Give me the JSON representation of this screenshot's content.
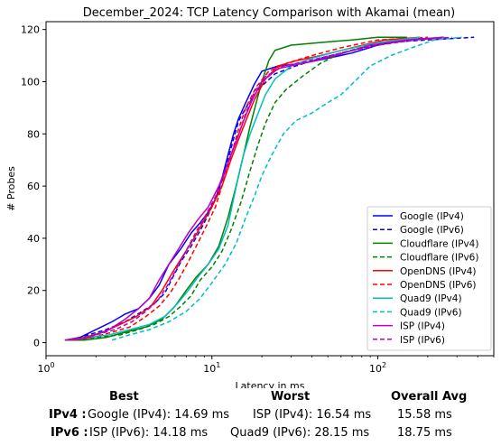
{
  "chart_data": {
    "type": "line",
    "title": "December_2024: TCP Latency Comparison with Akamai (mean)",
    "xlabel": "Latency in ms",
    "ylabel": "# Probes",
    "xscale": "log",
    "xlim": [
      1,
      500
    ],
    "ylim": [
      -5,
      123
    ],
    "x_ticks": [
      "10^0",
      "10^1",
      "10^2"
    ],
    "y_ticks": [
      0,
      20,
      40,
      60,
      80,
      100,
      120
    ],
    "grid": false,
    "legend_position": "lower right",
    "series": [
      {
        "name": "Google (IPv4)",
        "color": "#0000ff",
        "dash": "solid",
        "points": [
          [
            1.3,
            1
          ],
          [
            1.6,
            2
          ],
          [
            2.0,
            5
          ],
          [
            2.5,
            8
          ],
          [
            3.0,
            11
          ],
          [
            3.6,
            13
          ],
          [
            4.2,
            17
          ],
          [
            4.8,
            22
          ],
          [
            5.5,
            30
          ],
          [
            6.5,
            36
          ],
          [
            7.5,
            42
          ],
          [
            8.5,
            46
          ],
          [
            9.5,
            50
          ],
          [
            10.5,
            55
          ],
          [
            11.5,
            63
          ],
          [
            12.5,
            72
          ],
          [
            13.5,
            80
          ],
          [
            14.5,
            86
          ],
          [
            16,
            92
          ],
          [
            18,
            99
          ],
          [
            20,
            104
          ],
          [
            25,
            106
          ],
          [
            35,
            107
          ],
          [
            50,
            109
          ],
          [
            70,
            111
          ],
          [
            100,
            114
          ],
          [
            150,
            116
          ],
          [
            250,
            117
          ]
        ]
      },
      {
        "name": "Google (IPv6)",
        "color": "#0000ff",
        "dash": "dashed",
        "points": [
          [
            1.4,
            1
          ],
          [
            1.8,
            3
          ],
          [
            2.3,
            5
          ],
          [
            3.0,
            8
          ],
          [
            3.8,
            12
          ],
          [
            4.5,
            15
          ],
          [
            5.2,
            19
          ],
          [
            5.8,
            25
          ],
          [
            6.5,
            31
          ],
          [
            7.5,
            37
          ],
          [
            8.5,
            43
          ],
          [
            9.5,
            49
          ],
          [
            10.5,
            55
          ],
          [
            11.5,
            62
          ],
          [
            12.5,
            70
          ],
          [
            13.5,
            78
          ],
          [
            14.5,
            85
          ],
          [
            16,
            90
          ],
          [
            19,
            97
          ],
          [
            24,
            103
          ],
          [
            32,
            106
          ],
          [
            45,
            109
          ],
          [
            70,
            112
          ],
          [
            110,
            115
          ],
          [
            200,
            116
          ],
          [
            380,
            117
          ]
        ]
      },
      {
        "name": "Cloudflare (IPv4)",
        "color": "#008000",
        "dash": "solid",
        "points": [
          [
            1.3,
            1
          ],
          [
            1.7,
            1
          ],
          [
            2.3,
            2
          ],
          [
            3.0,
            4
          ],
          [
            4.0,
            6
          ],
          [
            5.0,
            9
          ],
          [
            6.0,
            14
          ],
          [
            7.0,
            20
          ],
          [
            8.0,
            25
          ],
          [
            9.5,
            30
          ],
          [
            11,
            37
          ],
          [
            12.5,
            48
          ],
          [
            14,
            60
          ],
          [
            15.5,
            72
          ],
          [
            17,
            83
          ],
          [
            18.5,
            92
          ],
          [
            20,
            100
          ],
          [
            22,
            108
          ],
          [
            24,
            112
          ],
          [
            30,
            114
          ],
          [
            45,
            115
          ],
          [
            70,
            116
          ],
          [
            100,
            117
          ],
          [
            150,
            117
          ]
        ]
      },
      {
        "name": "Cloudflare (IPv6)",
        "color": "#008000",
        "dash": "dashed",
        "points": [
          [
            1.5,
            1
          ],
          [
            2.0,
            2
          ],
          [
            2.8,
            3
          ],
          [
            3.6,
            5
          ],
          [
            4.5,
            7
          ],
          [
            5.5,
            10
          ],
          [
            6.5,
            14
          ],
          [
            7.5,
            18
          ],
          [
            8.5,
            24
          ],
          [
            10,
            29
          ],
          [
            11.5,
            35
          ],
          [
            13,
            43
          ],
          [
            15,
            54
          ],
          [
            17,
            66
          ],
          [
            19,
            76
          ],
          [
            21,
            84
          ],
          [
            24,
            92
          ],
          [
            28,
            97
          ],
          [
            35,
            102
          ],
          [
            45,
            107
          ],
          [
            60,
            111
          ],
          [
            90,
            114
          ],
          [
            150,
            116
          ]
        ]
      },
      {
        "name": "OpenDNS (IPv4)",
        "color": "#ff0000",
        "dash": "solid",
        "points": [
          [
            1.3,
            1
          ],
          [
            1.7,
            2
          ],
          [
            2.2,
            4
          ],
          [
            2.8,
            7
          ],
          [
            3.5,
            10
          ],
          [
            4.3,
            14
          ],
          [
            5.0,
            20
          ],
          [
            5.8,
            27
          ],
          [
            6.8,
            34
          ],
          [
            7.8,
            40
          ],
          [
            8.8,
            46
          ],
          [
            10,
            52
          ],
          [
            11.5,
            60
          ],
          [
            13,
            70
          ],
          [
            14.5,
            78
          ],
          [
            16,
            85
          ],
          [
            18,
            93
          ],
          [
            21,
            101
          ],
          [
            25,
            106
          ],
          [
            32,
            108
          ],
          [
            45,
            110
          ],
          [
            70,
            113
          ],
          [
            110,
            116
          ],
          [
            180,
            117
          ]
        ]
      },
      {
        "name": "OpenDNS (IPv6)",
        "color": "#ff0000",
        "dash": "dashed",
        "points": [
          [
            1.4,
            1
          ],
          [
            1.9,
            2
          ],
          [
            2.5,
            4
          ],
          [
            3.2,
            6
          ],
          [
            4.0,
            10
          ],
          [
            4.8,
            14
          ],
          [
            5.6,
            19
          ],
          [
            6.4,
            25
          ],
          [
            7.2,
            31
          ],
          [
            8.2,
            38
          ],
          [
            9.3,
            45
          ],
          [
            10.5,
            52
          ],
          [
            11.5,
            60
          ],
          [
            12.5,
            68
          ],
          [
            13.5,
            75
          ],
          [
            14.5,
            82
          ],
          [
            16,
            90
          ],
          [
            18.5,
            98
          ],
          [
            22,
            104
          ],
          [
            28,
            107
          ],
          [
            40,
            110
          ],
          [
            60,
            113
          ],
          [
            100,
            116
          ],
          [
            200,
            117
          ]
        ]
      },
      {
        "name": "Quad9 (IPv4)",
        "color": "#00bfbf",
        "dash": "solid",
        "points": [
          [
            1.3,
            1
          ],
          [
            1.8,
            2
          ],
          [
            2.4,
            3
          ],
          [
            3.2,
            5
          ],
          [
            4.2,
            7
          ],
          [
            5.2,
            10
          ],
          [
            6.2,
            15
          ],
          [
            7.2,
            20
          ],
          [
            8.2,
            25
          ],
          [
            9.5,
            30
          ],
          [
            11,
            36
          ],
          [
            12.5,
            45
          ],
          [
            13.5,
            55
          ],
          [
            14.5,
            64
          ],
          [
            15.5,
            72
          ],
          [
            17,
            80
          ],
          [
            19,
            88
          ],
          [
            21,
            95
          ],
          [
            24,
            101
          ],
          [
            30,
            106
          ],
          [
            40,
            109
          ],
          [
            60,
            112
          ],
          [
            100,
            115
          ],
          [
            180,
            117
          ]
        ]
      },
      {
        "name": "Quad9 (IPv6)",
        "color": "#00bfbf",
        "dash": "dashed",
        "points": [
          [
            2.5,
            1
          ],
          [
            3.2,
            3
          ],
          [
            4.2,
            5
          ],
          [
            5.5,
            8
          ],
          [
            7.0,
            12
          ],
          [
            8.5,
            17
          ],
          [
            10,
            23
          ],
          [
            12,
            30
          ],
          [
            14,
            38
          ],
          [
            16,
            48
          ],
          [
            18,
            56
          ],
          [
            20,
            64
          ],
          [
            23,
            72
          ],
          [
            27,
            80
          ],
          [
            32,
            85
          ],
          [
            40,
            88
          ],
          [
            50,
            92
          ],
          [
            60,
            95
          ],
          [
            75,
            101
          ],
          [
            90,
            106
          ],
          [
            120,
            110
          ],
          [
            160,
            113
          ],
          [
            220,
            116
          ],
          [
            320,
            117
          ]
        ]
      },
      {
        "name": "ISP (IPv4)",
        "color": "#bf00bf",
        "dash": "solid",
        "points": [
          [
            1.3,
            1
          ],
          [
            1.8,
            2
          ],
          [
            2.4,
            5
          ],
          [
            3.0,
            9
          ],
          [
            3.6,
            13
          ],
          [
            4.2,
            17
          ],
          [
            4.8,
            24
          ],
          [
            5.5,
            30
          ],
          [
            6.3,
            36
          ],
          [
            7.2,
            42
          ],
          [
            8.2,
            47
          ],
          [
            9.5,
            52
          ],
          [
            11,
            60
          ],
          [
            12.5,
            69
          ],
          [
            14,
            77
          ],
          [
            15.5,
            85
          ],
          [
            17.5,
            93
          ],
          [
            20,
            100
          ],
          [
            25,
            105
          ],
          [
            35,
            107
          ],
          [
            55,
            110
          ],
          [
            90,
            114
          ],
          [
            150,
            116
          ],
          [
            250,
            117
          ]
        ]
      },
      {
        "name": "ISP (IPv6)",
        "color": "#bf00bf",
        "dash": "dashed",
        "points": [
          [
            1.5,
            1
          ],
          [
            2.0,
            3
          ],
          [
            2.6,
            5
          ],
          [
            3.3,
            8
          ],
          [
            4.0,
            12
          ],
          [
            4.7,
            16
          ],
          [
            5.4,
            22
          ],
          [
            6.2,
            29
          ],
          [
            7.1,
            36
          ],
          [
            8.1,
            43
          ],
          [
            9.2,
            49
          ],
          [
            10.5,
            56
          ],
          [
            11.8,
            64
          ],
          [
            13,
            72
          ],
          [
            14.5,
            80
          ],
          [
            16,
            88
          ],
          [
            18,
            96
          ],
          [
            21,
            102
          ],
          [
            27,
            106
          ],
          [
            38,
            108
          ],
          [
            60,
            111
          ],
          [
            100,
            114
          ],
          [
            170,
            116
          ],
          [
            280,
            117
          ]
        ]
      }
    ]
  },
  "summary": {
    "headers": {
      "best": "Best",
      "worst": "Worst",
      "avg": "Overall Avg"
    },
    "rows": [
      {
        "label": "IPv4 :",
        "best": "Google (IPv4): 14.69 ms",
        "worst": "ISP (IPv4): 16.54 ms",
        "avg": "15.58 ms"
      },
      {
        "label": "IPv6 :",
        "best": "ISP (IPv6): 14.18 ms",
        "worst": "Quad9 (IPv6): 28.15 ms",
        "avg": "18.75 ms"
      }
    ]
  }
}
